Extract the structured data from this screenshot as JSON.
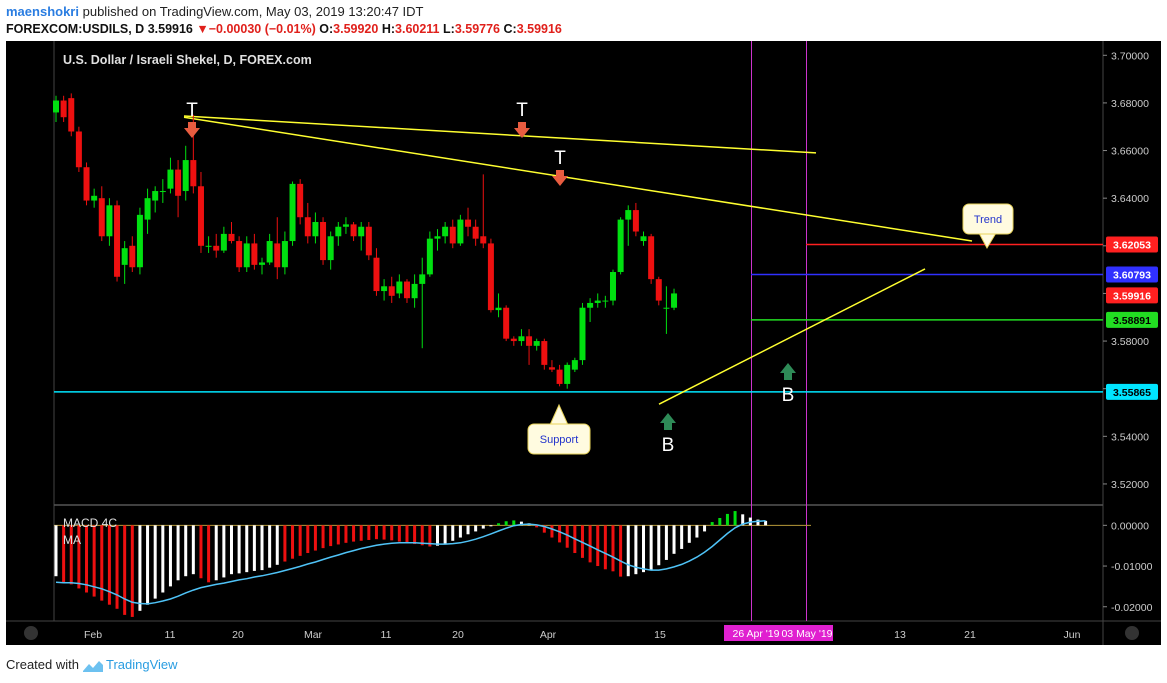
{
  "header": {
    "author": "maenshokri",
    "published": "published on TradingView.com, May 03, 2019 13:20:47 IDT",
    "symbol": "FOREXCOM:USDILS, D",
    "last": "3.59916",
    "change_arrow": "▼",
    "change": "−0.00030 (−0.01%)",
    "o_label": "O:",
    "o": "3.59920",
    "h_label": "H:",
    "h": "3.60211",
    "l_label": "L:",
    "l": "3.59776",
    "c_label": "C:",
    "c": "3.59916"
  },
  "footer": {
    "created_with": "Created with",
    "brand": "TradingView"
  },
  "colors": {
    "background": "#000000",
    "up": "#00e010",
    "down": "#ee1010",
    "yellow": "#ffff30",
    "cyan": "#00e5ff",
    "red_level": "#ff2020",
    "blue_level": "#3030ff",
    "green_level": "#22dd22",
    "magenta": "#cc33cc",
    "macd_signal": "#4fc3f7",
    "arrow_down": "#e85c40",
    "arrow_up": "#2e8b57"
  },
  "chart_data": {
    "type": "candlestick",
    "title": "U.S. Dollar / Israeli Shekel, D, FOREX.com",
    "x_tick_labels": [
      "Feb",
      "11",
      "20",
      "Mar",
      "11",
      "20",
      "Apr",
      "15",
      "13",
      "21",
      "Jun"
    ],
    "x_highlight_labels": [
      "26 Apr '19",
      "03 May '19"
    ],
    "y_tick_labels": [
      "3.70000",
      "3.68000",
      "3.66000",
      "3.64000",
      "3.62000",
      "3.60000",
      "3.58000",
      "3.56000",
      "3.54000",
      "3.52000"
    ],
    "ylim": [
      3.512,
      3.706
    ],
    "candles": [
      [
        3.676,
        3.683,
        3.672,
        3.681
      ],
      [
        3.681,
        3.683,
        3.672,
        3.674
      ],
      [
        3.682,
        3.684,
        3.666,
        3.668
      ],
      [
        3.668,
        3.67,
        3.651,
        3.653
      ],
      [
        3.653,
        3.655,
        3.637,
        3.639
      ],
      [
        3.639,
        3.644,
        3.636,
        3.641
      ],
      [
        3.64,
        3.645,
        3.622,
        3.624
      ],
      [
        3.624,
        3.64,
        3.62,
        3.637
      ],
      [
        3.637,
        3.639,
        3.605,
        3.607
      ],
      [
        3.612,
        3.622,
        3.604,
        3.619
      ],
      [
        3.62,
        3.624,
        3.609,
        3.611
      ],
      [
        3.611,
        3.636,
        3.608,
        3.633
      ],
      [
        3.631,
        3.644,
        3.625,
        3.64
      ],
      [
        3.639,
        3.645,
        3.634,
        3.643
      ],
      [
        3.643,
        3.648,
        3.638,
        3.643
      ],
      [
        3.644,
        3.657,
        3.642,
        3.652
      ],
      [
        3.652,
        3.656,
        3.632,
        3.641
      ],
      [
        3.643,
        3.662,
        3.639,
        3.656
      ],
      [
        3.656,
        3.675,
        3.642,
        3.645
      ],
      [
        3.645,
        3.651,
        3.617,
        3.62
      ],
      [
        3.62,
        3.624,
        3.617,
        3.62
      ],
      [
        3.62,
        3.625,
        3.615,
        3.618
      ],
      [
        3.618,
        3.628,
        3.617,
        3.625
      ],
      [
        3.625,
        3.63,
        3.621,
        3.622
      ],
      [
        3.622,
        3.624,
        3.609,
        3.611
      ],
      [
        3.611,
        3.624,
        3.609,
        3.621
      ],
      [
        3.621,
        3.625,
        3.61,
        3.612
      ],
      [
        3.612,
        3.615,
        3.608,
        3.613
      ],
      [
        3.613,
        3.625,
        3.612,
        3.622
      ],
      [
        3.621,
        3.632,
        3.606,
        3.611
      ],
      [
        3.611,
        3.626,
        3.608,
        3.622
      ],
      [
        3.622,
        3.647,
        3.62,
        3.646
      ],
      [
        3.646,
        3.648,
        3.629,
        3.632
      ],
      [
        3.632,
        3.638,
        3.621,
        3.624
      ],
      [
        3.624,
        3.634,
        3.621,
        3.63
      ],
      [
        3.63,
        3.632,
        3.612,
        3.614
      ],
      [
        3.614,
        3.626,
        3.61,
        3.624
      ],
      [
        3.624,
        3.63,
        3.62,
        3.628
      ],
      [
        3.628,
        3.632,
        3.625,
        3.629
      ],
      [
        3.629,
        3.63,
        3.622,
        3.624
      ],
      [
        3.624,
        3.63,
        3.618,
        3.628
      ],
      [
        3.628,
        3.63,
        3.614,
        3.616
      ],
      [
        3.615,
        3.619,
        3.599,
        3.601
      ],
      [
        3.601,
        3.606,
        3.597,
        3.603
      ],
      [
        3.603,
        3.607,
        3.596,
        3.599
      ],
      [
        3.6,
        3.608,
        3.598,
        3.605
      ],
      [
        3.605,
        3.606,
        3.596,
        3.598
      ],
      [
        3.598,
        3.608,
        3.594,
        3.604
      ],
      [
        3.604,
        3.615,
        3.577,
        3.608
      ],
      [
        3.608,
        3.626,
        3.607,
        3.623
      ],
      [
        3.623,
        3.627,
        3.618,
        3.624
      ],
      [
        3.624,
        3.63,
        3.621,
        3.628
      ],
      [
        3.628,
        3.631,
        3.619,
        3.621
      ],
      [
        3.621,
        3.633,
        3.62,
        3.631
      ],
      [
        3.631,
        3.636,
        3.624,
        3.628
      ],
      [
        3.628,
        3.631,
        3.62,
        3.623
      ],
      [
        3.624,
        3.65,
        3.619,
        3.621
      ],
      [
        3.621,
        3.623,
        3.592,
        3.593
      ],
      [
        3.593,
        3.6,
        3.59,
        3.594
      ],
      [
        3.594,
        3.595,
        3.58,
        3.581
      ],
      [
        3.581,
        3.582,
        3.578,
        3.58
      ],
      [
        3.58,
        3.585,
        3.578,
        3.582
      ],
      [
        3.582,
        3.585,
        3.57,
        3.578
      ],
      [
        3.578,
        3.581,
        3.576,
        3.58
      ],
      [
        3.58,
        3.581,
        3.568,
        3.57
      ],
      [
        3.569,
        3.572,
        3.567,
        3.568
      ],
      [
        3.568,
        3.57,
        3.561,
        3.562
      ],
      [
        3.562,
        3.571,
        3.56,
        3.57
      ],
      [
        3.568,
        3.573,
        3.567,
        3.572
      ],
      [
        3.572,
        3.596,
        3.57,
        3.594
      ],
      [
        3.594,
        3.598,
        3.588,
        3.596
      ],
      [
        3.596,
        3.6,
        3.594,
        3.597
      ],
      [
        3.597,
        3.599,
        3.594,
        3.597
      ],
      [
        3.597,
        3.61,
        3.595,
        3.609
      ],
      [
        3.609,
        3.632,
        3.608,
        3.631
      ],
      [
        3.631,
        3.637,
        3.62,
        3.635
      ],
      [
        3.635,
        3.638,
        3.624,
        3.626
      ],
      [
        3.622,
        3.626,
        3.62,
        3.624
      ],
      [
        3.624,
        3.625,
        3.604,
        3.606
      ],
      [
        3.606,
        3.607,
        3.595,
        3.597
      ],
      [
        3.594,
        3.603,
        3.583,
        3.594
      ],
      [
        3.594,
        3.602,
        3.593,
        3.6
      ]
    ],
    "levels": [
      {
        "label": "3.62053",
        "value": 3.62053,
        "color": "#ff2020"
      },
      {
        "label": "3.60793",
        "value": 3.60793,
        "color": "#3030ff"
      },
      {
        "label": "3.59916",
        "value": 3.59916,
        "color": "#ff2020"
      },
      {
        "label": "3.58891",
        "value": 3.58891,
        "color": "#22dd22"
      },
      {
        "label": "3.55865",
        "value": 3.55865,
        "color": "#00e5ff"
      }
    ],
    "annotations": {
      "top_marker": "T",
      "bottom_marker": "B",
      "trend_label": "Trend",
      "support_label": "Support"
    },
    "macd": {
      "label": "MACD 4C",
      "ma_label": "MA",
      "y_tick_labels": [
        "0.00000",
        "-0.01000",
        "-0.02000"
      ],
      "ylim": [
        -0.0235,
        0.0045
      ],
      "histogram": [
        -0.0125,
        -0.014,
        -0.0145,
        -0.0155,
        -0.0165,
        -0.0175,
        -0.0185,
        -0.0195,
        -0.0205,
        -0.022,
        -0.0225,
        -0.021,
        -0.0195,
        -0.018,
        -0.0165,
        -0.015,
        -0.0135,
        -0.0125,
        -0.012,
        -0.013,
        -0.014,
        -0.0135,
        -0.0128,
        -0.012,
        -0.0118,
        -0.0115,
        -0.0112,
        -0.011,
        -0.0104,
        -0.0097,
        -0.0089,
        -0.0082,
        -0.0075,
        -0.0068,
        -0.0062,
        -0.0056,
        -0.0051,
        -0.0047,
        -0.0043,
        -0.004,
        -0.0038,
        -0.0036,
        -0.0034,
        -0.0035,
        -0.0037,
        -0.004,
        -0.0043,
        -0.0046,
        -0.0049,
        -0.0052,
        -0.005,
        -0.0045,
        -0.0038,
        -0.003,
        -0.0022,
        -0.0015,
        -0.0008,
        -0.0001,
        0.0005,
        0.001,
        0.0012,
        0.0009,
        0.0005,
        -0.0005,
        -0.0018,
        -0.003,
        -0.0042,
        -0.0055,
        -0.0068,
        -0.008,
        -0.0091,
        -0.01,
        -0.0108,
        -0.0113,
        -0.0126,
        -0.0125,
        -0.012,
        -0.0115,
        -0.011,
        -0.0098,
        -0.0085,
        -0.007,
        -0.0058,
        -0.0043,
        -0.003,
        -0.0015,
        0.0008,
        0.0018,
        0.0028,
        0.0035,
        0.0027,
        0.0019,
        0.0014,
        0.0011
      ],
      "hist_colors": [
        "w",
        "r",
        "r",
        "r",
        "r",
        "r",
        "r",
        "r",
        "r",
        "r",
        "r",
        "w",
        "w",
        "w",
        "w",
        "w",
        "w",
        "w",
        "w",
        "r",
        "r",
        "w",
        "w",
        "w",
        "w",
        "w",
        "w",
        "w",
        "w",
        "w",
        "r",
        "r",
        "r",
        "r",
        "r",
        "r",
        "r",
        "r",
        "r",
        "r",
        "r",
        "r",
        "r",
        "r",
        "r",
        "r",
        "r",
        "r",
        "r",
        "r",
        "w",
        "w",
        "w",
        "w",
        "w",
        "w",
        "w",
        "w",
        "g",
        "g",
        "g",
        "w",
        "w",
        "r",
        "r",
        "r",
        "r",
        "r",
        "r",
        "r",
        "r",
        "r",
        "r",
        "r",
        "r",
        "w",
        "w",
        "w",
        "w",
        "w",
        "w",
        "w",
        "w",
        "w",
        "w",
        "w",
        "g",
        "g",
        "g",
        "g",
        "w",
        "w",
        "w",
        "w"
      ],
      "signal": [
        -0.014,
        -0.0141,
        -0.0141,
        -0.0143,
        -0.0146,
        -0.0151,
        -0.0156,
        -0.0163,
        -0.0171,
        -0.0181,
        -0.0189,
        -0.0192,
        -0.0193,
        -0.019,
        -0.0186,
        -0.0181,
        -0.0174,
        -0.0166,
        -0.0159,
        -0.0153,
        -0.0149,
        -0.0145,
        -0.0142,
        -0.0138,
        -0.0134,
        -0.0131,
        -0.0127,
        -0.0124,
        -0.012,
        -0.0116,
        -0.0111,
        -0.0106,
        -0.0101,
        -0.0095,
        -0.009,
        -0.0084,
        -0.0078,
        -0.0073,
        -0.0067,
        -0.0062,
        -0.0057,
        -0.0053,
        -0.0049,
        -0.0046,
        -0.0044,
        -0.0043,
        -0.0043,
        -0.0043,
        -0.0044,
        -0.0045,
        -0.0046,
        -0.0046,
        -0.0045,
        -0.0043,
        -0.0039,
        -0.0034,
        -0.0028,
        -0.0021,
        -0.0014,
        -0.0007,
        -0.0001,
        0.0002,
        0.0003,
        0.0001,
        -0.0003,
        -0.0009,
        -0.0016,
        -0.0024,
        -0.0033,
        -0.0042,
        -0.0051,
        -0.006,
        -0.0069,
        -0.0078,
        -0.0088,
        -0.0097,
        -0.0103,
        -0.0107,
        -0.011,
        -0.011,
        -0.0107,
        -0.0102,
        -0.0096,
        -0.0088,
        -0.0078,
        -0.0066,
        -0.0052,
        -0.0036,
        -0.002,
        -0.0006,
        0.0003,
        0.0008,
        0.001,
        0.0011
      ]
    }
  }
}
